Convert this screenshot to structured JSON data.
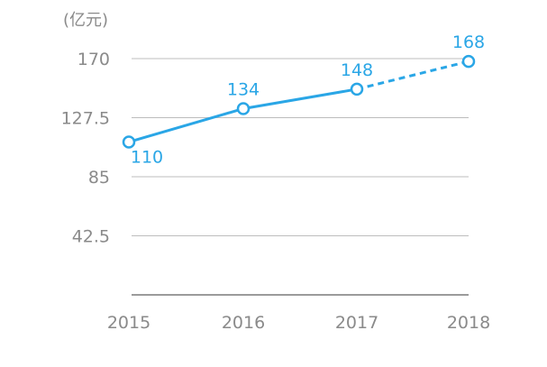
{
  "chart_data": {
    "type": "line",
    "unit_label": "(亿元)",
    "categories": [
      "2015",
      "2016",
      "2017",
      "2018"
    ],
    "series": [
      {
        "values": [
          110,
          134,
          148,
          168
        ],
        "data_labels": [
          "110",
          "134",
          "148",
          "168"
        ],
        "projected_from_index": 2,
        "color": "#2aa6e6"
      }
    ],
    "y_ticks": [
      42.5,
      85,
      127.5,
      170
    ],
    "y_tick_labels": [
      "42.5",
      "85",
      "127.5",
      "170"
    ],
    "ylim": [
      0,
      170
    ],
    "grid": "horizontal",
    "gridline_color": "#bdbdbd",
    "axis_color": "#7a7a7a",
    "tick_label_color": "#8a8a8a",
    "legend": "none"
  }
}
